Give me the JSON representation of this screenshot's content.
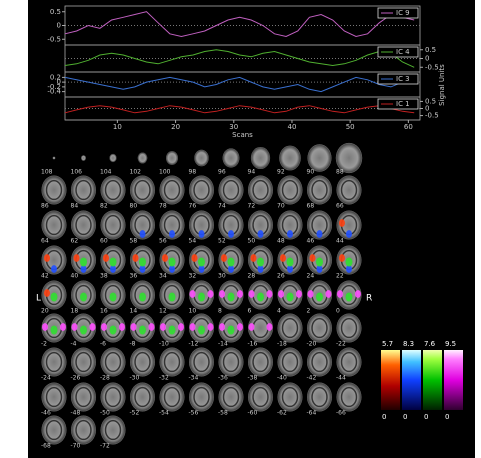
{
  "chart_data": [
    {
      "type": "line",
      "x": [
        1,
        3,
        5,
        7,
        9,
        11,
        13,
        15,
        17,
        19,
        21,
        23,
        25,
        27,
        29,
        31,
        33,
        35,
        37,
        39,
        41,
        43,
        45,
        47,
        49,
        51,
        53,
        55,
        57,
        59,
        61
      ],
      "xlim": [
        1,
        62
      ],
      "ylim": [
        -0.6,
        0.6
      ],
      "yticks": [
        0.5,
        0,
        -0.5
      ],
      "ytick_side": "left",
      "series": [
        {
          "name": "IC 9",
          "color": "#c060c0",
          "values": [
            -0.3,
            -0.2,
            0.0,
            -0.1,
            0.2,
            0.3,
            0.4,
            0.5,
            0.1,
            -0.3,
            -0.4,
            -0.3,
            -0.2,
            0.0,
            0.2,
            0.3,
            0.2,
            0.0,
            -0.3,
            -0.4,
            -0.2,
            0.3,
            0.4,
            0.2,
            -0.2,
            -0.4,
            -0.3,
            0.1,
            0.4,
            0.3,
            0.2
          ]
        }
      ]
    },
    {
      "type": "line",
      "x": [
        1,
        3,
        5,
        7,
        9,
        11,
        13,
        15,
        17,
        19,
        21,
        23,
        25,
        27,
        29,
        31,
        33,
        35,
        37,
        39,
        41,
        43,
        45,
        47,
        49,
        51,
        53,
        55,
        57,
        59,
        61
      ],
      "xlim": [
        1,
        62
      ],
      "ylim": [
        -0.6,
        0.6
      ],
      "yticks": [
        0.5,
        0,
        -0.5
      ],
      "ytick_side": "right",
      "series": [
        {
          "name": "IC 4",
          "color": "#50b030",
          "values": [
            -0.4,
            -0.3,
            -0.1,
            0.2,
            0.3,
            0.2,
            0.0,
            -0.2,
            -0.3,
            -0.1,
            0.1,
            0.2,
            0.4,
            0.5,
            0.4,
            0.2,
            0.1,
            0.3,
            0.4,
            0.2,
            0.0,
            -0.2,
            -0.3,
            -0.4,
            -0.3,
            -0.1,
            0.2,
            0.4,
            0.3,
            -0.2,
            -0.5
          ]
        }
      ]
    },
    {
      "type": "line",
      "x": [
        1,
        3,
        5,
        7,
        9,
        11,
        13,
        15,
        17,
        19,
        21,
        23,
        25,
        27,
        29,
        31,
        33,
        35,
        37,
        39,
        41,
        43,
        45,
        47,
        49,
        51,
        53,
        55,
        57,
        59,
        61
      ],
      "xlim": [
        1,
        62
      ],
      "ylim": [
        -0.5,
        0.3
      ],
      "yticks": [
        0.2,
        0,
        -0.2,
        -0.4
      ],
      "ytick_side": "left",
      "series": [
        {
          "name": "IC 3",
          "color": "#3a70d0",
          "values": [
            0.2,
            0.1,
            0.0,
            -0.1,
            -0.2,
            -0.3,
            -0.2,
            0.0,
            0.1,
            0.2,
            0.1,
            0.0,
            -0.2,
            -0.1,
            0.1,
            0.2,
            0.0,
            -0.2,
            -0.3,
            -0.2,
            -0.1,
            -0.3,
            -0.4,
            -0.2,
            0.0,
            0.2,
            0.1,
            -0.1,
            -0.2,
            0.0,
            0.1
          ]
        }
      ]
    },
    {
      "type": "line",
      "x": [
        1,
        3,
        5,
        7,
        9,
        11,
        13,
        15,
        17,
        19,
        21,
        23,
        25,
        27,
        29,
        31,
        33,
        35,
        37,
        39,
        41,
        43,
        45,
        47,
        49,
        51,
        53,
        55,
        57,
        59,
        61
      ],
      "xlim": [
        1,
        62
      ],
      "ylim": [
        -0.6,
        0.6
      ],
      "yticks": [
        0.5,
        0,
        -0.5
      ],
      "ytick_side": "right",
      "xticks": [
        10,
        20,
        30,
        40,
        50,
        60
      ],
      "xlabel": "Scans",
      "ylabel": "Signal Units",
      "series": [
        {
          "name": "IC 1",
          "color": "#c02020",
          "values": [
            -0.3,
            -0.1,
            0.1,
            0.2,
            0.1,
            -0.1,
            -0.3,
            -0.2,
            0.0,
            0.2,
            0.1,
            -0.1,
            -0.3,
            -0.2,
            0.0,
            0.2,
            0.1,
            -0.1,
            -0.3,
            -0.2,
            0.1,
            0.2,
            0.0,
            -0.2,
            -0.3,
            -0.1,
            0.1,
            0.2,
            0.0,
            -0.2,
            -0.3
          ]
        }
      ]
    }
  ],
  "montage": {
    "left_label": "L",
    "right_label": "R",
    "slice_labels": [
      [
        108,
        106,
        104,
        102,
        100,
        98,
        96,
        94,
        92,
        90,
        88
      ],
      [
        86,
        84,
        82,
        80,
        78,
        76,
        74,
        72,
        70,
        68,
        66
      ],
      [
        64,
        62,
        60,
        58,
        56,
        54,
        52,
        50,
        48,
        46,
        44
      ],
      [
        42,
        40,
        38,
        36,
        34,
        32,
        30,
        28,
        26,
        24,
        22
      ],
      [
        20,
        18,
        16,
        14,
        12,
        10,
        8,
        6,
        4,
        2,
        0
      ],
      [
        -2,
        -4,
        -6,
        -8,
        -10,
        -12,
        -14,
        -16,
        -18,
        -20,
        -22
      ],
      [
        -24,
        -26,
        -28,
        -30,
        -32,
        -34,
        -36,
        -38,
        -40,
        -42,
        -44
      ],
      [
        -46,
        -48,
        -50,
        -52,
        -54,
        -56,
        -58,
        -60,
        -62,
        -64,
        -66
      ],
      [
        -68,
        -70,
        -72
      ]
    ]
  },
  "colorbars": [
    {
      "max": 5.7,
      "min": 0,
      "color": "red"
    },
    {
      "max": 8.3,
      "min": 0,
      "color": "blue"
    },
    {
      "max": 7.6,
      "min": 0,
      "color": "green"
    },
    {
      "max": 9.5,
      "min": 0,
      "color": "magenta"
    }
  ]
}
